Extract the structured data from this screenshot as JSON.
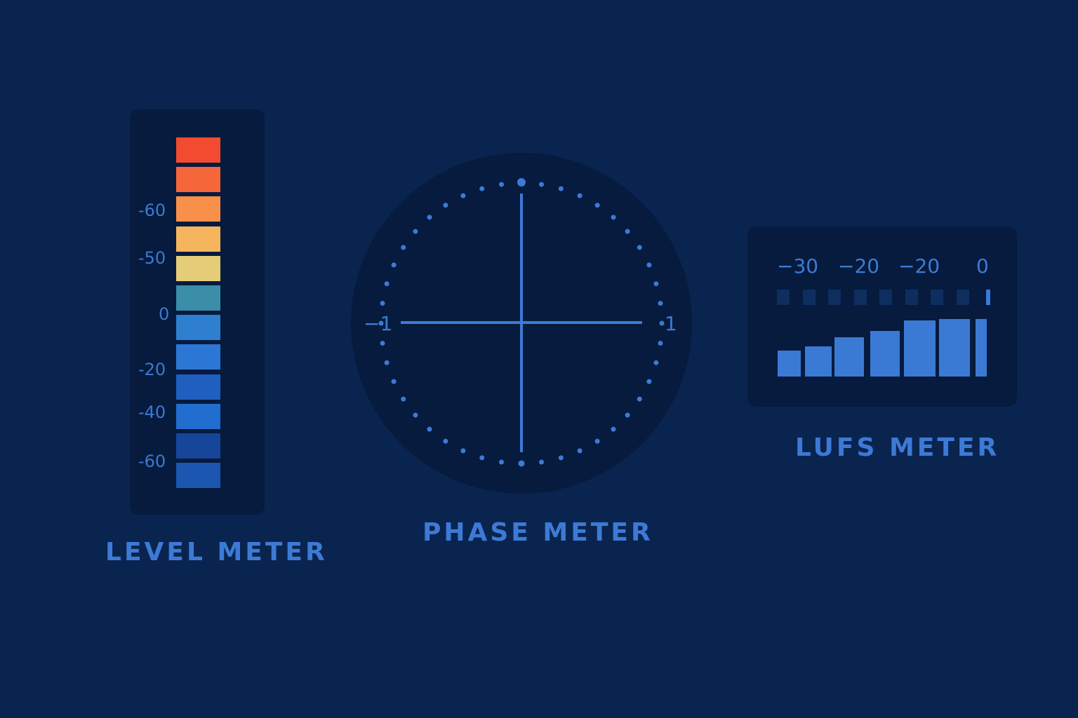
{
  "level_meter": {
    "title": "LEVEL METER",
    "scale": [
      "-60",
      "-50",
      "0",
      "-20",
      "-40",
      "-60"
    ],
    "segment_colors": [
      "#f24b2f",
      "#f5663a",
      "#f8904a",
      "#f5b55e",
      "#e4cc78",
      "#3a8ea8",
      "#2e7fcf",
      "#2c77d6",
      "#205fc0",
      "#226dd0",
      "#16459a",
      "#1b56b0"
    ]
  },
  "phase_meter": {
    "title": "PHASE METER",
    "left_label": "−1",
    "right_label": "1"
  },
  "lufs_meter": {
    "title": "LUFS METER",
    "scale": [
      "−30",
      "−20",
      "−20",
      "0"
    ],
    "indicator_count": 9,
    "bar_levels": [
      0.45,
      0.53,
      0.68,
      0.79,
      0.97,
      1.0,
      1.0
    ]
  }
}
